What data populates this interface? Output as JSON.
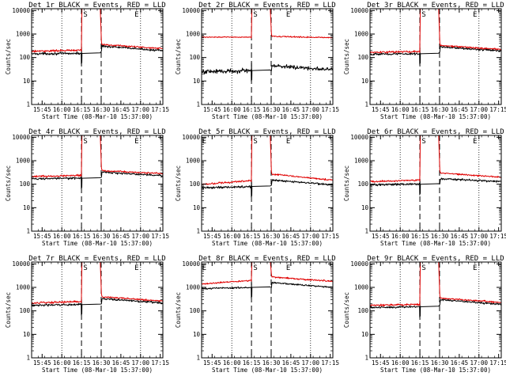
{
  "colors": {
    "events": "#000000",
    "lld": "#e00000",
    "background": "#ffffff"
  },
  "chart_data": [
    {
      "type": "line",
      "title": "Det 1r BLACK = Events, RED = LLD",
      "xlabel": "Start Time (08-Mar-10 15:37:00)",
      "ylabel": "Counts/sec",
      "x_ticks": [
        "15:45",
        "16:00",
        "16:15",
        "16:30",
        "16:45",
        "17:00",
        "17:15"
      ],
      "y_ticks": [
        "1",
        "10",
        "100",
        "1000",
        "10000"
      ],
      "y_scale": "log",
      "ylim": [
        1,
        12000
      ],
      "x_range_min": [
        0,
        100
      ],
      "dotted_lines_min": [
        23,
        83
      ],
      "dashed_lines_min": [
        38,
        53
      ],
      "markers": [
        {
          "label": "S",
          "x_min": 41
        },
        {
          "label": "E",
          "x_min": 80
        }
      ],
      "series": [
        {
          "role": "events",
          "color": "#000000",
          "start": 145,
          "pre_end": 150,
          "post_start": 310,
          "end": 195,
          "peak": 280,
          "pre_noise": 0.06,
          "post_noise": 0.05
        },
        {
          "role": "lld",
          "color": "#e00000",
          "start": 185,
          "pre_end": 205,
          "post_start": 360,
          "end": 240,
          "peak": 15000,
          "pre_noise": 0.05,
          "post_noise": 0.04
        }
      ]
    },
    {
      "type": "line",
      "title": "Det 2r BLACK = Events, RED = LLD",
      "xlabel": "Start Time (08-Mar-10 15:37:00)",
      "ylabel": "Counts/sec",
      "x_ticks": [
        "15:45",
        "16:00",
        "16:15",
        "16:30",
        "16:45",
        "17:00",
        "17:15"
      ],
      "y_ticks": [
        "1",
        "10",
        "100",
        "1000",
        "10000"
      ],
      "y_scale": "log",
      "ylim": [
        1,
        12000
      ],
      "x_range_min": [
        0,
        100
      ],
      "dotted_lines_min": [
        23,
        83
      ],
      "dashed_lines_min": [
        38,
        53
      ],
      "markers": [
        {
          "label": "S",
          "x_min": 41
        },
        {
          "label": "E",
          "x_min": 66
        }
      ],
      "series": [
        {
          "role": "events",
          "color": "#000000",
          "start": 25,
          "pre_end": 28,
          "post_start": 45,
          "end": 30,
          "peak": 60,
          "pre_noise": 0.12,
          "post_noise": 0.1
        },
        {
          "role": "lld",
          "color": "#e00000",
          "start": 740,
          "pre_end": 740,
          "post_start": 800,
          "end": 700,
          "peak": 15000,
          "pre_noise": 0.02,
          "post_noise": 0.03
        }
      ]
    },
    {
      "type": "line",
      "title": "Det 3r BLACK = Events, RED = LLD",
      "xlabel": "Start Time (08-Mar-10 15:37:00)",
      "ylabel": "Counts/sec",
      "x_ticks": [
        "15:45",
        "16:00",
        "16:15",
        "16:30",
        "16:45",
        "17:00",
        "17:15"
      ],
      "y_ticks": [
        "1",
        "10",
        "100",
        "1000",
        "10000"
      ],
      "y_scale": "log",
      "ylim": [
        1,
        12000
      ],
      "x_range_min": [
        0,
        100
      ],
      "dotted_lines_min": [
        23,
        83
      ],
      "dashed_lines_min": [
        38,
        53
      ],
      "markers": [
        {
          "label": "S",
          "x_min": 41
        },
        {
          "label": "E",
          "x_min": 80
        }
      ],
      "series": [
        {
          "role": "events",
          "color": "#000000",
          "start": 140,
          "pre_end": 145,
          "post_start": 290,
          "end": 190,
          "peak": 260,
          "pre_noise": 0.06,
          "post_noise": 0.05
        },
        {
          "role": "lld",
          "color": "#e00000",
          "start": 165,
          "pre_end": 180,
          "post_start": 330,
          "end": 220,
          "peak": 15000,
          "pre_noise": 0.05,
          "post_noise": 0.04
        }
      ]
    },
    {
      "type": "line",
      "title": "Det 4r BLACK = Events, RED = LLD",
      "xlabel": "Start Time (08-Mar-10 15:37:00)",
      "ylabel": "Counts/sec",
      "x_ticks": [
        "15:45",
        "16:00",
        "16:15",
        "16:30",
        "16:45",
        "17:00",
        "17:15"
      ],
      "y_ticks": [
        "1",
        "10",
        "100",
        "1000",
        "10000"
      ],
      "y_scale": "log",
      "ylim": [
        1,
        12000
      ],
      "x_range_min": [
        0,
        100
      ],
      "dotted_lines_min": [
        23,
        83
      ],
      "dashed_lines_min": [
        38,
        53
      ],
      "markers": [
        {
          "label": "S",
          "x_min": 41
        },
        {
          "label": "E",
          "x_min": 80
        }
      ],
      "series": [
        {
          "role": "events",
          "color": "#000000",
          "start": 170,
          "pre_end": 180,
          "post_start": 330,
          "end": 230,
          "peak": 300,
          "pre_noise": 0.05,
          "post_noise": 0.05
        },
        {
          "role": "lld",
          "color": "#e00000",
          "start": 210,
          "pre_end": 240,
          "post_start": 380,
          "end": 280,
          "peak": 15000,
          "pre_noise": 0.05,
          "post_noise": 0.04
        }
      ]
    },
    {
      "type": "line",
      "title": "Det 5r BLACK = Events, RED = LLD",
      "xlabel": "Start Time (08-Mar-10 15:37:00)",
      "ylabel": "Counts/sec",
      "x_ticks": [
        "15:45",
        "16:00",
        "16:15",
        "16:30",
        "16:45",
        "17:00",
        "17:15"
      ],
      "y_ticks": [
        "1",
        "10",
        "100",
        "1000",
        "10000"
      ],
      "y_scale": "log",
      "ylim": [
        1,
        12000
      ],
      "x_range_min": [
        0,
        100
      ],
      "dotted_lines_min": [
        23,
        83
      ],
      "dashed_lines_min": [
        38,
        53
      ],
      "markers": [
        {
          "label": "E",
          "x_min": 2
        },
        {
          "label": "S",
          "x_min": 41
        },
        {
          "label": "E",
          "x_min": 66
        }
      ],
      "series": [
        {
          "role": "events",
          "color": "#000000",
          "start": 70,
          "pre_end": 80,
          "post_start": 150,
          "end": 95,
          "peak": 140,
          "pre_noise": 0.07,
          "post_noise": 0.05
        },
        {
          "role": "lld",
          "color": "#e00000",
          "start": 100,
          "pre_end": 140,
          "post_start": 270,
          "end": 150,
          "peak": 15000,
          "pre_noise": 0.05,
          "post_noise": 0.04
        }
      ]
    },
    {
      "type": "line",
      "title": "Det 6r BLACK = Events, RED = LLD",
      "xlabel": "Start Time (08-Mar-10 15:37:00)",
      "ylabel": "Counts/sec",
      "x_ticks": [
        "15:45",
        "16:00",
        "16:15",
        "16:30",
        "16:45",
        "17:00",
        "17:15"
      ],
      "y_ticks": [
        "1",
        "10",
        "100",
        "1000",
        "10000"
      ],
      "y_scale": "log",
      "ylim": [
        1,
        12000
      ],
      "x_range_min": [
        0,
        100
      ],
      "dotted_lines_min": [
        23,
        83
      ],
      "dashed_lines_min": [
        38,
        53
      ],
      "markers": [
        {
          "label": "S",
          "x_min": 41
        },
        {
          "label": "E",
          "x_min": 80
        }
      ],
      "series": [
        {
          "role": "events",
          "color": "#000000",
          "start": 95,
          "pre_end": 100,
          "post_start": 170,
          "end": 130,
          "peak": 160,
          "pre_noise": 0.06,
          "post_noise": 0.05
        },
        {
          "role": "lld",
          "color": "#e00000",
          "start": 130,
          "pre_end": 150,
          "post_start": 300,
          "end": 200,
          "peak": 15000,
          "pre_noise": 0.05,
          "post_noise": 0.04
        }
      ]
    },
    {
      "type": "line",
      "title": "Det 7r BLACK = Events, RED = LLD",
      "xlabel": "Start Time (08-Mar-10 15:37:00)",
      "ylabel": "Counts/sec",
      "x_ticks": [
        "15:45",
        "16:00",
        "16:15",
        "16:30",
        "16:45",
        "17:00",
        "17:15"
      ],
      "y_ticks": [
        "1",
        "10",
        "100",
        "1000",
        "10000"
      ],
      "y_scale": "log",
      "ylim": [
        1,
        12000
      ],
      "x_range_min": [
        0,
        100
      ],
      "dotted_lines_min": [
        23,
        83
      ],
      "dashed_lines_min": [
        38,
        53
      ],
      "markers": [
        {
          "label": "S",
          "x_min": 41
        },
        {
          "label": "E",
          "x_min": 80
        }
      ],
      "series": [
        {
          "role": "events",
          "color": "#000000",
          "start": 175,
          "pre_end": 185,
          "post_start": 330,
          "end": 220,
          "peak": 300,
          "pre_noise": 0.05,
          "post_noise": 0.05
        },
        {
          "role": "lld",
          "color": "#e00000",
          "start": 215,
          "pre_end": 250,
          "post_start": 400,
          "end": 260,
          "peak": 15000,
          "pre_noise": 0.05,
          "post_noise": 0.04
        }
      ]
    },
    {
      "type": "line",
      "title": "Det 8r BLACK = Events, RED = LLD",
      "xlabel": "Start Time (08-Mar-10 15:37:00)",
      "ylabel": "Counts/sec",
      "x_ticks": [
        "15:45",
        "16:00",
        "16:15",
        "16:30",
        "16:45",
        "17:00",
        "17:15"
      ],
      "y_ticks": [
        "1",
        "10",
        "100",
        "1000",
        "10000"
      ],
      "y_scale": "log",
      "ylim": [
        1,
        12000
      ],
      "x_range_min": [
        0,
        100
      ],
      "dotted_lines_min": [
        23,
        83
      ],
      "dashed_lines_min": [
        38,
        53
      ],
      "markers": [
        {
          "label": "E",
          "x_min": 2
        },
        {
          "label": "S",
          "x_min": 41
        },
        {
          "label": "E",
          "x_min": 66
        }
      ],
      "series": [
        {
          "role": "events",
          "color": "#000000",
          "start": 900,
          "pre_end": 1000,
          "post_start": 1600,
          "end": 1000,
          "peak": 1600,
          "pre_noise": 0.04,
          "post_noise": 0.04
        },
        {
          "role": "lld",
          "color": "#e00000",
          "start": 1400,
          "pre_end": 2000,
          "post_start": 2800,
          "end": 1800,
          "peak": 15000,
          "pre_noise": 0.04,
          "post_noise": 0.04
        }
      ]
    },
    {
      "type": "line",
      "title": "Det 9r BLACK = Events, RED = LLD",
      "xlabel": "Start Time (08-Mar-10 15:37:00)",
      "ylabel": "Counts/sec",
      "x_ticks": [
        "15:45",
        "16:00",
        "16:15",
        "16:30",
        "16:45",
        "17:00",
        "17:15"
      ],
      "y_ticks": [
        "1",
        "10",
        "100",
        "1000",
        "10000"
      ],
      "y_scale": "log",
      "ylim": [
        1,
        12000
      ],
      "x_range_min": [
        0,
        100
      ],
      "dotted_lines_min": [
        23,
        83
      ],
      "dashed_lines_min": [
        38,
        53
      ],
      "markers": [
        {
          "label": "S",
          "x_min": 41
        },
        {
          "label": "E",
          "x_min": 80
        }
      ],
      "series": [
        {
          "role": "events",
          "color": "#000000",
          "start": 140,
          "pre_end": 150,
          "post_start": 300,
          "end": 190,
          "peak": 250,
          "pre_noise": 0.06,
          "post_noise": 0.05
        },
        {
          "role": "lld",
          "color": "#e00000",
          "start": 170,
          "pre_end": 190,
          "post_start": 350,
          "end": 230,
          "peak": 15000,
          "pre_noise": 0.05,
          "post_noise": 0.04
        }
      ]
    }
  ]
}
